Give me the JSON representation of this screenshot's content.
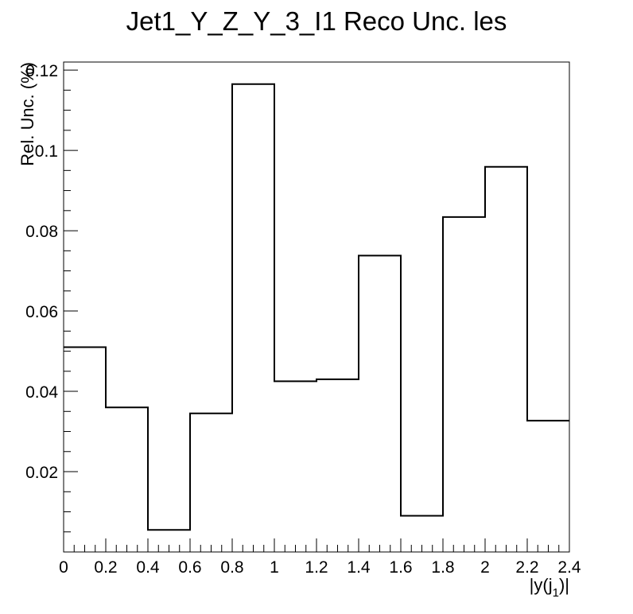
{
  "chart_data": {
    "type": "bar",
    "style": "step-histogram",
    "title": "Jet1_Y_Z_Y_3_I1 Reco Unc. les",
    "xlabel_parts": {
      "main": "|y(j",
      "sub": "1",
      "tail": ")|"
    },
    "ylabel": "Rel. Unc. (%)",
    "xlim": [
      0,
      2.4
    ],
    "ylim": [
      0,
      0.122
    ],
    "x_ticks": [
      "0",
      "0.2",
      "0.4",
      "0.6",
      "0.8",
      "1",
      "1.2",
      "1.4",
      "1.6",
      "1.8",
      "2",
      "2.2",
      "2.4"
    ],
    "y_ticks": [
      "0.02",
      "0.04",
      "0.06",
      "0.08",
      "0.1",
      "0.12"
    ],
    "bin_edges": [
      0,
      0.2,
      0.4,
      0.6,
      0.8,
      1.0,
      1.2,
      1.4,
      1.6,
      1.8,
      2.0,
      2.2,
      2.4
    ],
    "values": [
      0.051,
      0.036,
      0.0055,
      0.0345,
      0.1165,
      0.0425,
      0.043,
      0.0738,
      0.009,
      0.0834,
      0.0959,
      0.0327
    ],
    "grid": false,
    "line_color": "#000000"
  }
}
